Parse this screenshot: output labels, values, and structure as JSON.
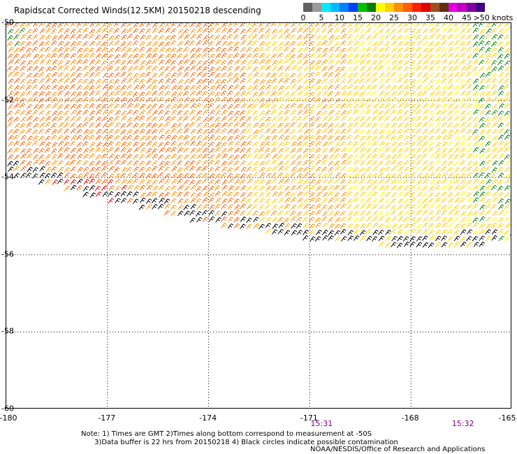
{
  "title": "Rapidscat Corrected Winds(12.5KM) 20150218 descending",
  "legend": {
    "bins": [
      {
        "label": "0",
        "color": "#606060"
      },
      {
        "label": "",
        "color": "#9a9a9a"
      },
      {
        "label": "5",
        "color": "#00e8ff"
      },
      {
        "label": "",
        "color": "#00b8ff"
      },
      {
        "label": "10",
        "color": "#0080ff"
      },
      {
        "label": "",
        "color": "#0040ff"
      },
      {
        "label": "15",
        "color": "#00c000"
      },
      {
        "label": "",
        "color": "#008000"
      },
      {
        "label": "20",
        "color": "#ffff00"
      },
      {
        "label": "",
        "color": "#ffd000"
      },
      {
        "label": "25",
        "color": "#ff9000"
      },
      {
        "label": "",
        "color": "#ff6000"
      },
      {
        "label": "30",
        "color": "#ff2000"
      },
      {
        "label": "",
        "color": "#e00000"
      },
      {
        "label": "35",
        "color": "#a05020"
      },
      {
        "label": "",
        "color": "#603010"
      },
      {
        "label": "40",
        "color": "#e000e0"
      },
      {
        "label": "",
        "color": "#c000c0"
      },
      {
        "label": "45",
        "color": "#8000a0"
      },
      {
        "label": "",
        "color": "#400080"
      }
    ],
    "end_label": ">50 knots"
  },
  "axes": {
    "lat_labels": [
      "-50",
      "-52",
      "-54",
      "-56",
      "-58",
      "-60"
    ],
    "lon_labels": [
      "-180",
      "-177",
      "-174",
      "-171",
      "-168",
      "-165"
    ],
    "time_labels": [
      "15:31",
      "15:32"
    ]
  },
  "notes": {
    "line1": "Note: 1) Times are GMT 2)Times along bottom correspond to measurement at -50S",
    "line2": "      3)Data buffer is 22 hrs from 20150218 4) Black circles indicate possible contamination"
  },
  "credit": "NOAA/NESDIS/Office of Research and Applications",
  "map_data": {
    "lon_range": [
      -180,
      -165
    ],
    "lat_range": [
      -60,
      -50
    ],
    "grid": "dotted at every 3 deg lon and 2 deg lat",
    "swath_southern_edge": [
      [
        -180,
        -53.9
      ],
      [
        -177,
        -54.6
      ],
      [
        -174,
        -55.2
      ],
      [
        -171,
        -55.6
      ],
      [
        -168,
        -55.8
      ],
      [
        -165,
        -55.7
      ]
    ],
    "wind_speed_regions": [
      {
        "region": "west-central",
        "knots": 28,
        "color": "#ff6000"
      },
      {
        "region": "east",
        "knots": 21,
        "color": "#ffd000"
      },
      {
        "region": "far-east",
        "knots": 16,
        "color": "#008000"
      },
      {
        "region": "southern-edge",
        "knots": 33,
        "color": "#000000",
        "note": "possible contamination"
      }
    ]
  }
}
